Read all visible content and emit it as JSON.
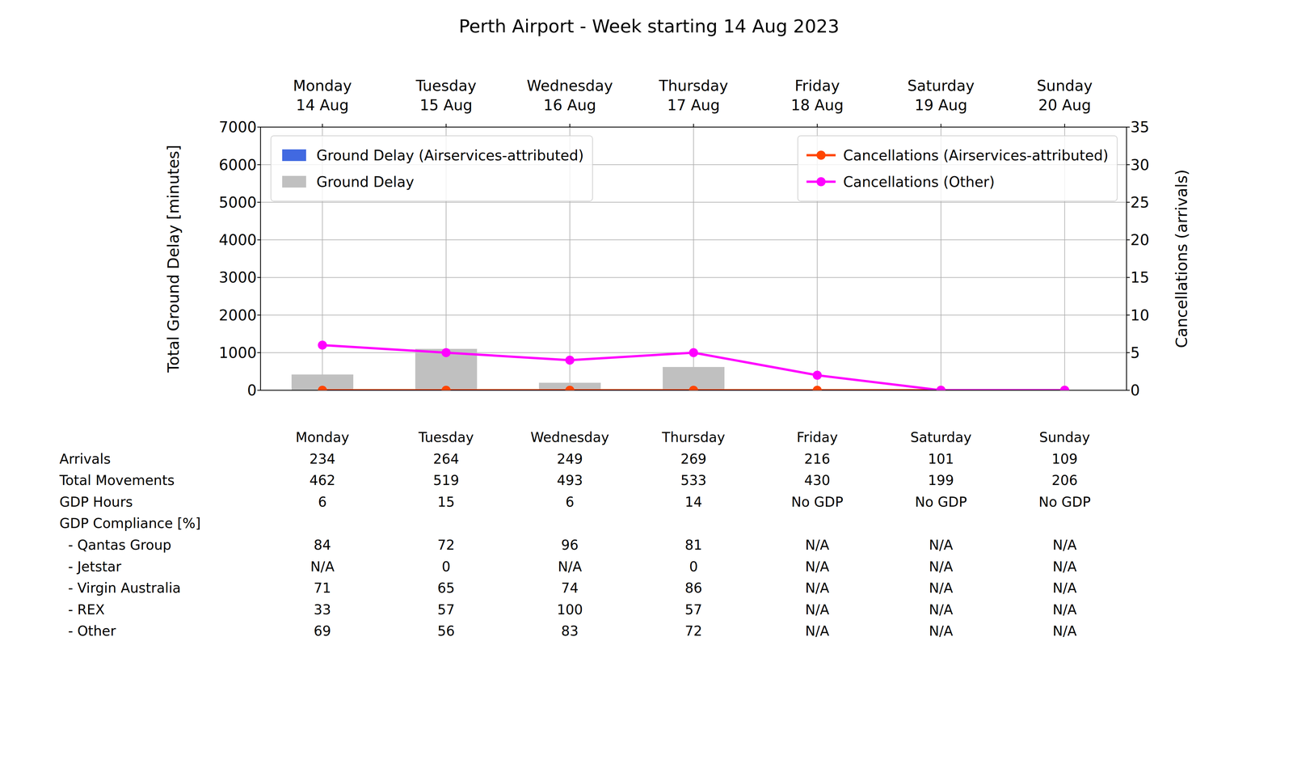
{
  "chart_data": {
    "type": "bar",
    "title": "Perth Airport - Week starting 14 Aug 2023",
    "categories": [
      "Monday\n14 Aug",
      "Tuesday\n15 Aug",
      "Wednesday\n16 Aug",
      "Thursday\n17 Aug",
      "Friday\n18 Aug",
      "Saturday\n19 Aug",
      "Sunday\n20 Aug"
    ],
    "y_label": "Total Ground Delay [minutes]",
    "y2_label": "Cancellations (arrivals)",
    "ylim": [
      0,
      7000
    ],
    "yticks": [
      0,
      1000,
      2000,
      3000,
      4000,
      5000,
      6000,
      7000
    ],
    "y2lim": [
      0,
      35
    ],
    "y2ticks": [
      0,
      5,
      10,
      15,
      20,
      25,
      30,
      35
    ],
    "grid": true,
    "legend": "top",
    "series": [
      {
        "name": "Ground Delay (Airservices-attributed)",
        "type": "bar",
        "color": "#4169e1",
        "values": [
          0,
          0,
          0,
          0,
          0,
          0,
          0
        ]
      },
      {
        "name": "Ground Delay",
        "type": "bar",
        "color": "#c0c0c0",
        "values": [
          420,
          1100,
          200,
          620,
          0,
          0,
          0
        ]
      },
      {
        "name": "Cancellations (Airservices-attributed)",
        "type": "line",
        "axis": "y2",
        "color": "#ff4500",
        "marker": "o",
        "line_style": "solid",
        "values": [
          0,
          0,
          0,
          0,
          0,
          0,
          0
        ]
      },
      {
        "name": "Cancellations (Other)",
        "type": "line",
        "axis": "y2",
        "color": "#ff00ff",
        "marker": "o",
        "line_style": "solid",
        "values": [
          6,
          5,
          4,
          5,
          2,
          0,
          0
        ]
      }
    ]
  },
  "table": {
    "columns": [
      "Monday",
      "Tuesday",
      "Wednesday",
      "Thursday",
      "Friday",
      "Saturday",
      "Sunday"
    ],
    "rows": [
      {
        "label": "Arrivals",
        "values": [
          234,
          264,
          249,
          269,
          216,
          101,
          109
        ]
      },
      {
        "label": "Total Movements",
        "values": [
          462,
          519,
          493,
          533,
          430,
          199,
          206
        ]
      },
      {
        "label": "GDP Hours",
        "values": [
          6,
          15,
          6,
          14,
          "No GDP",
          "No GDP",
          "No GDP"
        ]
      },
      {
        "label": "GDP Compliance [%]",
        "values": []
      },
      {
        "label": "  - Qantas Group",
        "values": [
          84,
          72,
          96,
          81,
          "N/A",
          "N/A",
          "N/A"
        ]
      },
      {
        "label": "  - Jetstar",
        "values": [
          "N/A",
          0,
          "N/A",
          0,
          "N/A",
          "N/A",
          "N/A"
        ]
      },
      {
        "label": "  - Virgin Australia",
        "values": [
          71,
          65,
          74,
          86,
          "N/A",
          "N/A",
          "N/A"
        ]
      },
      {
        "label": "  - REX",
        "values": [
          33,
          57,
          100,
          57,
          "N/A",
          "N/A",
          "N/A"
        ]
      },
      {
        "label": "  - Other",
        "values": [
          69,
          56,
          83,
          72,
          "N/A",
          "N/A",
          "N/A"
        ]
      }
    ]
  }
}
